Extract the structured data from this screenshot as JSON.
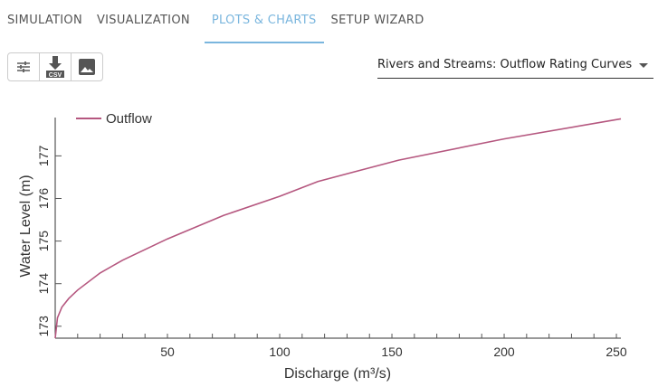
{
  "tabs": [
    {
      "label": "SIMULATION"
    },
    {
      "label": "VISUALIZATION"
    },
    {
      "label": "PLOTS & CHARTS",
      "active": true
    },
    {
      "label": "SETUP WIZARD"
    }
  ],
  "toolbar": {
    "buttons": [
      {
        "icon": "sliders-icon"
      },
      {
        "icon": "download-csv-icon",
        "badge": "CSV"
      },
      {
        "icon": "image-icon"
      }
    ]
  },
  "selector": {
    "value": "Rivers and Streams: Outflow Rating Curves"
  },
  "colors": {
    "accent": "#7ab6de",
    "series": "#b5577f"
  },
  "chart_data": {
    "type": "line",
    "xlabel": "Discharge (m³/s)",
    "ylabel": "Water Level (m)",
    "xlim": [
      0,
      252
    ],
    "ylim": [
      172.72,
      177.9
    ],
    "xticks": [
      50,
      100,
      150,
      200,
      250
    ],
    "yticks": [
      173,
      174,
      175,
      176,
      177
    ],
    "legend_position": "top-left",
    "grid": false,
    "series": [
      {
        "name": "Outflow",
        "x": [
          0,
          1,
          3,
          6,
          10,
          20,
          30,
          50,
          75,
          100,
          117,
          153,
          200,
          252
        ],
        "y": [
          172.72,
          173.2,
          173.45,
          173.65,
          173.85,
          174.25,
          174.55,
          175.05,
          175.6,
          176.05,
          176.4,
          176.9,
          177.4,
          177.87
        ]
      }
    ]
  }
}
